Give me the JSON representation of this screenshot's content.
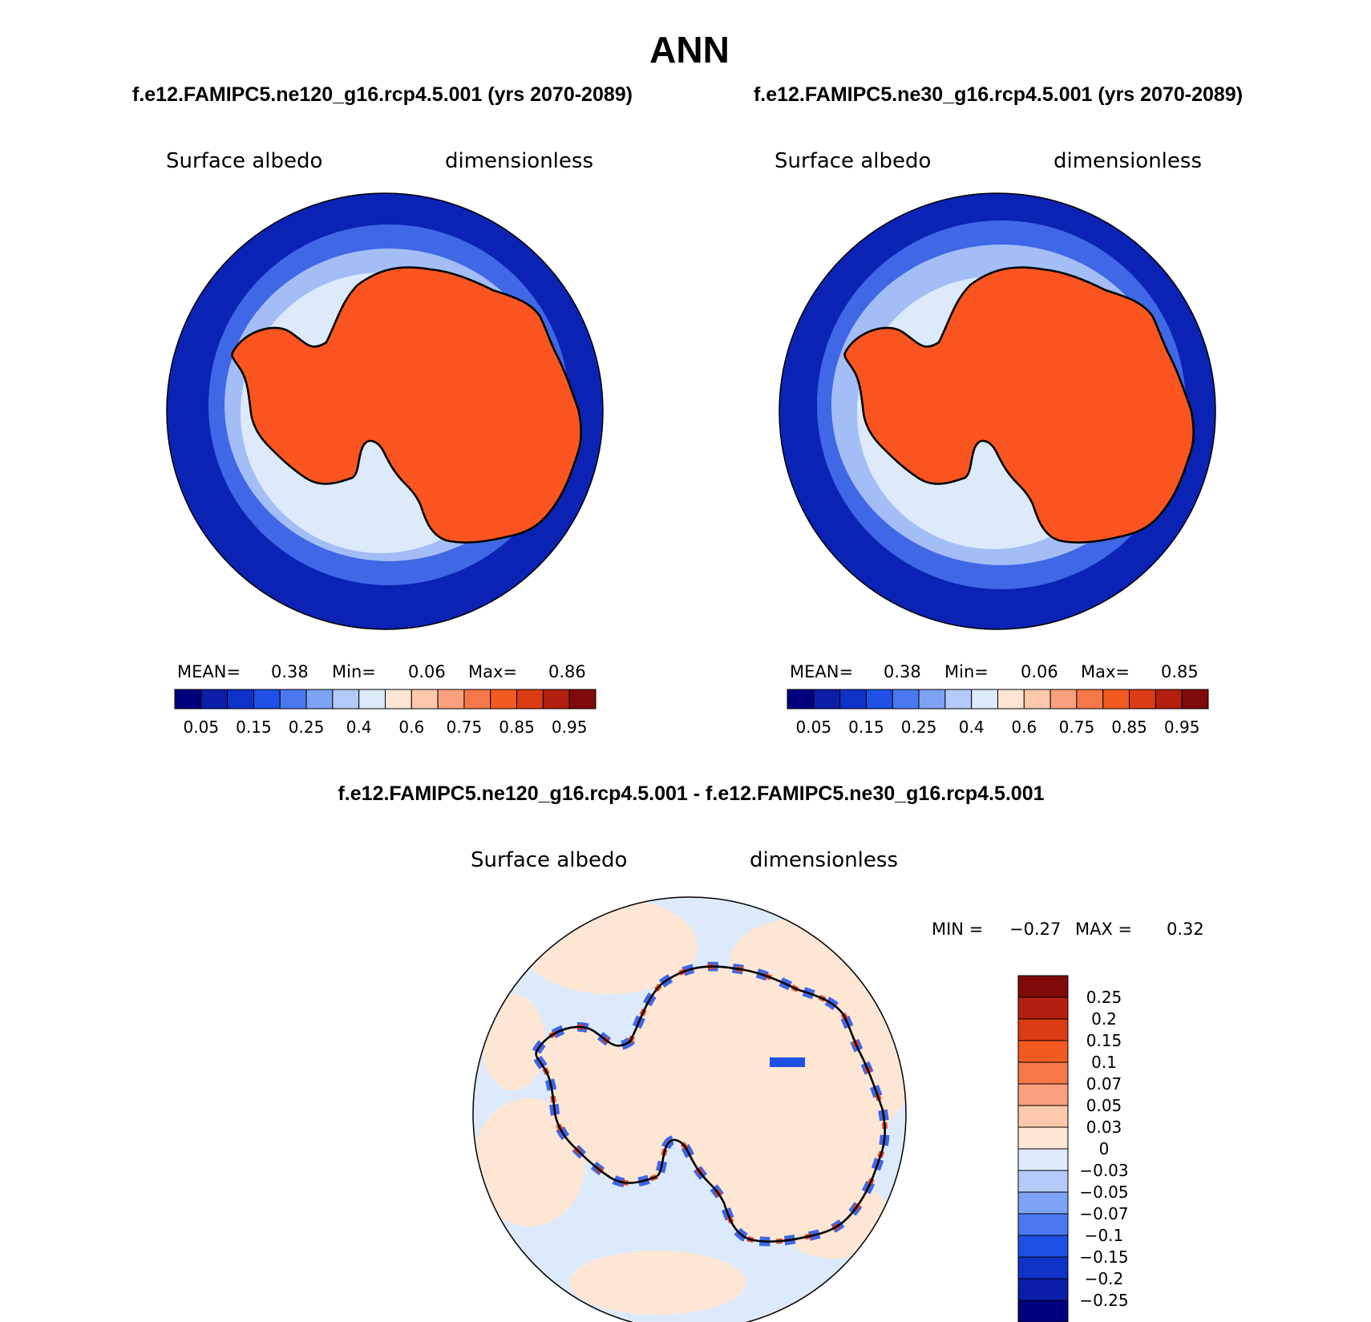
{
  "figure": {
    "title": "ANN",
    "subtitle_left": "f.e12.FAMIPC5.ne120_g16.rcp4.5.001 (yrs 2070-2089)",
    "subtitle_right": "f.e12.FAMIPC5.ne30_g16.rcp4.5.001 (yrs 2070-2089)",
    "diff_title": "f.e12.FAMIPC5.ne120_g16.rcp4.5.001 - f.e12.FAMIPC5.ne30_g16.rcp4.5.001"
  },
  "panels": [
    {
      "id": "ne120",
      "variable": "Surface albedo",
      "units": "dimensionless",
      "stats": {
        "mean_label": "MEAN=",
        "mean": "0.38",
        "min_label": "Min=",
        "min": "0.06",
        "max_label": "Max=",
        "max": "0.86"
      }
    },
    {
      "id": "ne30",
      "variable": "Surface albedo",
      "units": "dimensionless",
      "stats": {
        "mean_label": "MEAN=",
        "mean": "0.38",
        "min_label": "Min=",
        "min": "0.06",
        "max_label": "Max=",
        "max": "0.85"
      }
    },
    {
      "id": "diff",
      "variable": "Surface albedo",
      "units": "dimensionless",
      "stats": {
        "min_label": "MIN =",
        "min": "−0.27",
        "max_label": "MAX =",
        "max": "0.32"
      }
    }
  ],
  "colorbar_main": {
    "colors": [
      "#00007f",
      "#0a1ea8",
      "#0f32c8",
      "#1e50e6",
      "#4a78f0",
      "#7ea2f4",
      "#b4caf8",
      "#dceafc",
      "#fee6d4",
      "#fdc8ac",
      "#fba07e",
      "#f77848",
      "#f25a20",
      "#dc3c14",
      "#b42010",
      "#7f0a0a"
    ],
    "tick_labels": [
      "0.05",
      "0.15",
      "0.25",
      "0.4",
      "0.6",
      "0.75",
      "0.85",
      "0.95"
    ]
  },
  "colorbar_diff": {
    "colors": [
      "#00007f",
      "#0a1ea8",
      "#0f32c8",
      "#1e50e6",
      "#4a78f0",
      "#7ea2f4",
      "#b4caf8",
      "#dceafc",
      "#fee6d4",
      "#fdc8ac",
      "#fba07e",
      "#f77848",
      "#f25a20",
      "#dc3c14",
      "#b42010",
      "#7f0a0a"
    ],
    "tick_labels": [
      "−0.25",
      "−0.2",
      "−0.15",
      "−0.1",
      "−0.07",
      "−0.05",
      "−0.03",
      "0",
      "0.03",
      "0.05",
      "0.07",
      "0.1",
      "0.15",
      "0.2",
      "0.25"
    ]
  },
  "map_colors": {
    "ocean": "#0a23b4",
    "ring1": "#3f67e6",
    "ring2": "#a3bdf6",
    "seaice": "#dceafc",
    "ice_edge": "#fdc8ac",
    "continent": "#fa5520",
    "diff_bg": "#dceafc",
    "diff_pos": "#fee6d4",
    "diff_neg": "#1e50e6",
    "diff_red": "#e83a16"
  }
}
